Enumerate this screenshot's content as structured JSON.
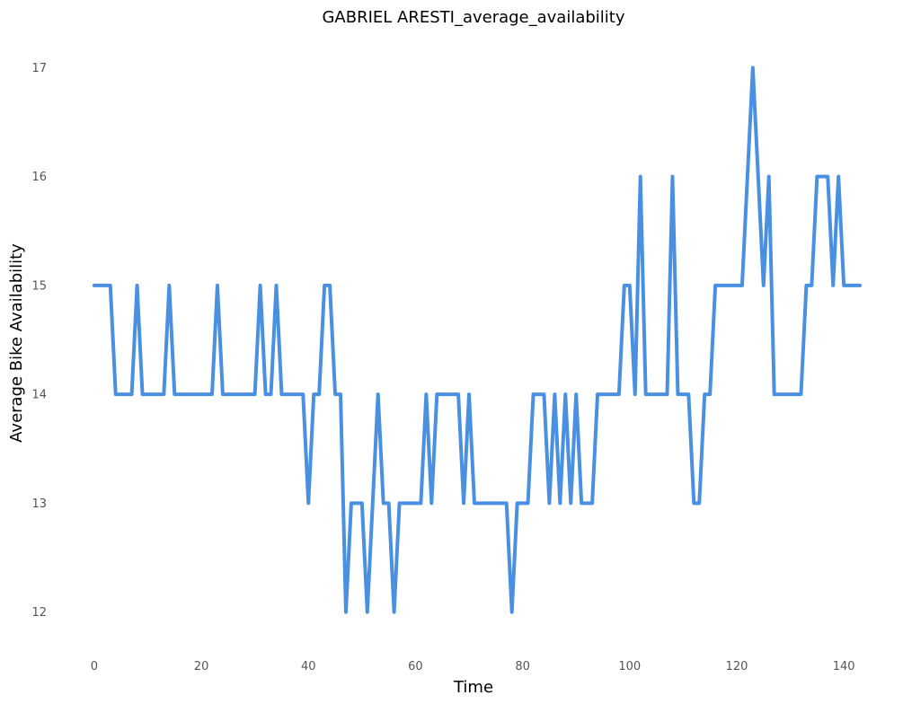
{
  "chart_data": {
    "type": "line",
    "title": "GABRIEL ARESTI_average_availability",
    "xlabel": "Time",
    "ylabel": "Average Bike Availability",
    "xlim": [
      -2.5,
      143.5
    ],
    "ylim": [
      11.75,
      17.25
    ],
    "xticks": [
      0,
      20,
      40,
      60,
      80,
      100,
      120,
      140
    ],
    "yticks": [
      12,
      13,
      14,
      15,
      16,
      17
    ],
    "grid": false,
    "series": [
      {
        "color": "#4a90e2",
        "x": [
          0,
          1,
          2,
          3,
          4,
          5,
          6,
          7,
          8,
          9,
          10,
          11,
          12,
          13,
          14,
          15,
          16,
          17,
          18,
          19,
          20,
          21,
          22,
          23,
          24,
          25,
          26,
          27,
          28,
          29,
          30,
          31,
          32,
          33,
          34,
          35,
          36,
          37,
          38,
          39,
          40,
          41,
          42,
          43,
          44,
          45,
          46,
          47,
          48,
          49,
          50,
          51,
          52,
          53,
          54,
          55,
          56,
          57,
          58,
          59,
          60,
          61,
          62,
          63,
          64,
          65,
          66,
          67,
          68,
          69,
          70,
          71,
          72,
          73,
          74,
          75,
          76,
          77,
          78,
          79,
          80,
          81,
          82,
          83,
          84,
          85,
          86,
          87,
          88,
          89,
          90,
          91,
          92,
          93,
          94,
          95,
          96,
          97,
          98,
          99,
          100,
          101,
          102,
          103,
          104,
          105,
          106,
          107,
          108,
          109,
          110,
          111,
          112,
          113,
          114,
          115,
          116,
          117,
          118,
          119,
          120,
          121,
          122,
          123,
          124,
          125,
          126,
          127,
          128,
          129,
          130,
          131,
          132,
          133,
          134,
          135,
          136,
          137,
          138,
          139,
          140,
          141,
          142,
          143
        ],
        "values": [
          15,
          15,
          15,
          15,
          14,
          14,
          14,
          14,
          15,
          14,
          14,
          14,
          14,
          14,
          15,
          14,
          14,
          14,
          14,
          14,
          14,
          14,
          14,
          15,
          14,
          14,
          14,
          14,
          14,
          14,
          14,
          15,
          14,
          14,
          15,
          14,
          14,
          14,
          14,
          14,
          13,
          14,
          14,
          15,
          15,
          14,
          14,
          12,
          13,
          13,
          13,
          12,
          13,
          14,
          13,
          13,
          12,
          13,
          13,
          13,
          13,
          13,
          14,
          13,
          14,
          14,
          14,
          14,
          14,
          13,
          14,
          13,
          13,
          13,
          13,
          13,
          13,
          13,
          12,
          13,
          13,
          13,
          14,
          14,
          14,
          13,
          14,
          13,
          14,
          13,
          14,
          13,
          13,
          13,
          14,
          14,
          14,
          14,
          14,
          15,
          15,
          14,
          16,
          14,
          14,
          14,
          14,
          14,
          16,
          14,
          14,
          14,
          13,
          13,
          14,
          14,
          15,
          15,
          15,
          15,
          15,
          15,
          16,
          17,
          16,
          15,
          16,
          14,
          14,
          14,
          14,
          14,
          14,
          15,
          15,
          16,
          16,
          16,
          15,
          16,
          15,
          15,
          15,
          15
        ]
      }
    ]
  }
}
